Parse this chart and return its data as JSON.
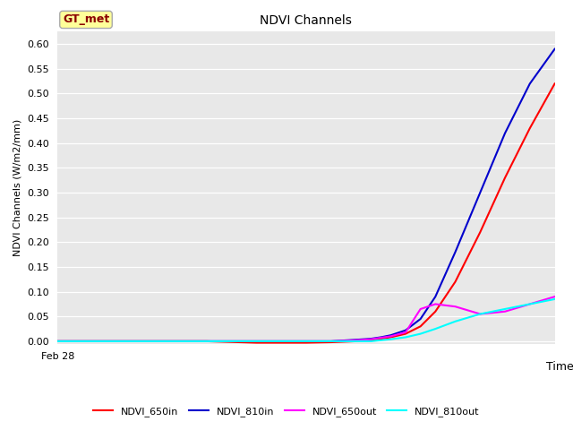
{
  "title": "NDVI Channels",
  "ylabel": "NDVI Channels (W/m2/mm)",
  "xlabel": "Time",
  "xtick_label": "Feb 28",
  "ylim": [
    -0.005,
    0.625
  ],
  "yticks": [
    0.0,
    0.05,
    0.1,
    0.15,
    0.2,
    0.25,
    0.3,
    0.35,
    0.4,
    0.45,
    0.5,
    0.55,
    0.6
  ],
  "annotation_text": "GT_met",
  "annotation_color": "#8B0000",
  "annotation_bg": "#FFFF99",
  "bg_color": "#E8E8E8",
  "fig_bg": "#FFFFFF",
  "lines": {
    "NDVI_650in": {
      "color": "#FF0000",
      "x": [
        0,
        10,
        20,
        30,
        40,
        50,
        55,
        60,
        63,
        65,
        67,
        70,
        73,
        76,
        80,
        85,
        90,
        95,
        100
      ],
      "y": [
        0.0,
        0.0,
        0.0,
        0.0,
        -0.003,
        -0.003,
        -0.002,
        0.0,
        0.003,
        0.005,
        0.008,
        0.015,
        0.03,
        0.06,
        0.12,
        0.22,
        0.33,
        0.43,
        0.52
      ]
    },
    "NDVI_810in": {
      "color": "#0000CC",
      "x": [
        0,
        10,
        20,
        30,
        40,
        50,
        55,
        60,
        63,
        65,
        67,
        70,
        73,
        76,
        80,
        85,
        90,
        95,
        100
      ],
      "y": [
        0.0,
        0.0,
        0.0,
        0.0,
        0.0,
        0.0,
        0.0,
        0.003,
        0.005,
        0.008,
        0.012,
        0.022,
        0.045,
        0.09,
        0.18,
        0.3,
        0.42,
        0.52,
        0.59
      ]
    },
    "NDVI_650out": {
      "color": "#FF00FF",
      "x": [
        0,
        10,
        20,
        30,
        40,
        50,
        55,
        60,
        63,
        65,
        67,
        70,
        73,
        76,
        80,
        85,
        90,
        95,
        100
      ],
      "y": [
        0.0,
        0.0,
        0.0,
        0.0,
        0.0,
        0.0,
        0.0,
        0.002,
        0.004,
        0.007,
        0.01,
        0.018,
        0.065,
        0.075,
        0.07,
        0.055,
        0.06,
        0.075,
        0.09
      ]
    },
    "NDVI_810out": {
      "color": "#00FFFF",
      "x": [
        0,
        10,
        20,
        30,
        40,
        50,
        55,
        60,
        63,
        65,
        67,
        70,
        73,
        76,
        80,
        85,
        90,
        95,
        100
      ],
      "y": [
        0.0,
        0.0,
        0.0,
        0.0,
        0.0,
        0.0,
        0.0,
        0.0,
        0.0,
        0.002,
        0.004,
        0.008,
        0.015,
        0.025,
        0.04,
        0.055,
        0.065,
        0.075,
        0.085
      ]
    }
  },
  "legend": {
    "entries": [
      "NDVI_650in",
      "NDVI_810in",
      "NDVI_650out",
      "NDVI_810out"
    ],
    "colors": [
      "#FF0000",
      "#0000CC",
      "#FF00FF",
      "#00FFFF"
    ]
  }
}
